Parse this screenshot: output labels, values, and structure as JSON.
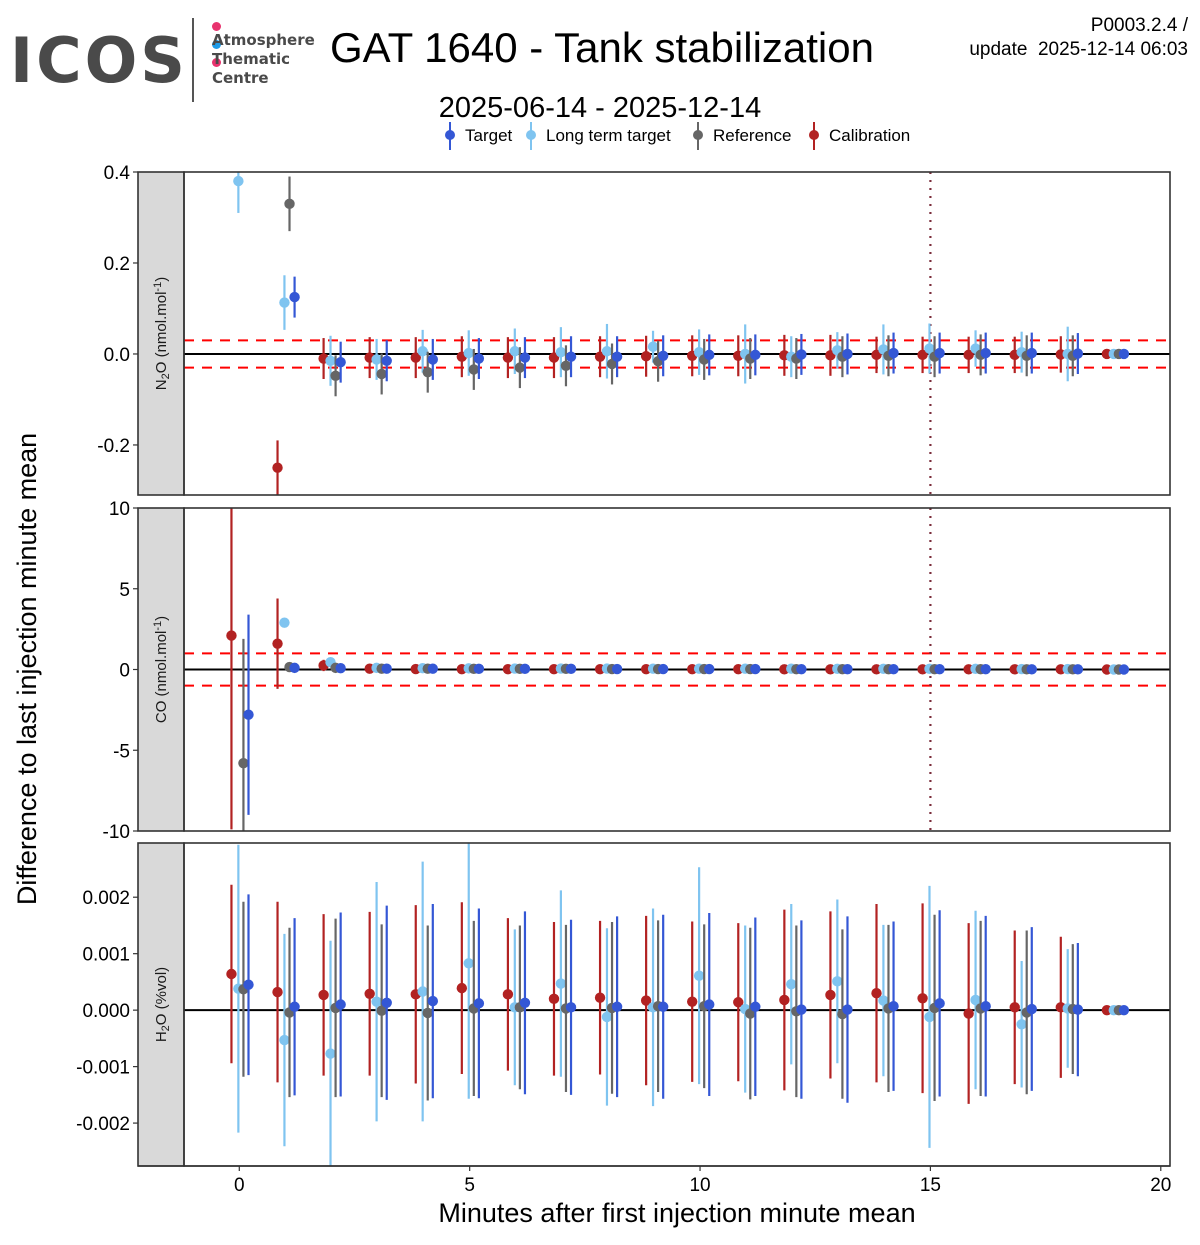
{
  "header": {
    "logo_main": "ICOS",
    "logo_lines": [
      "Atmosphere",
      "Thematic",
      "Centre"
    ],
    "logo_dot_colors": [
      "#e8336e",
      "#1e9be8",
      "#e8336e"
    ],
    "title": "GAT 1640 - Tank stabilization",
    "version_line1": "P0003.2.4 /",
    "version_line2": "update  2025-12-14 06:03"
  },
  "chart_data": {
    "type": "scatter",
    "subtitle": "2025-06-14 - 2025-12-14",
    "xlabel": "Minutes after first injection minute mean",
    "ylabel": "Difference to last injection minute mean",
    "xlim": [
      -1.2,
      20.2
    ],
    "x_ticks": [
      0,
      5,
      10,
      15,
      20
    ],
    "x_tick_labels": [
      "0",
      "5",
      "10",
      "15",
      "20"
    ],
    "grid": false,
    "legend": {
      "position": "top",
      "entries": [
        {
          "name": "Target",
          "color": "#3457d5"
        },
        {
          "name": "Long term target",
          "color": "#7fc4f0"
        },
        {
          "name": "Reference",
          "color": "#666666"
        },
        {
          "name": "Calibration",
          "color": "#b22222"
        }
      ]
    },
    "series_x_offsets": {
      "Calibration": -0.17,
      "Long term target": -0.02,
      "Reference": 0.09,
      "Target": 0.2
    },
    "vline_x": 15,
    "vline_color": "#7b2d3b",
    "panels": [
      {
        "strip_label": "N2O (nmol.mol-1)",
        "strip_main": "N",
        "strip_sub": "2",
        "strip_rest": "O (nmol.mol",
        "strip_sup": "-1",
        "strip_close": ")",
        "ylim": [
          -0.31,
          0.4
        ],
        "y_ticks": [
          -0.2,
          0.0,
          0.2,
          0.4
        ],
        "y_tick_labels": [
          "-0.2",
          "0.0",
          "0.2",
          "0.4"
        ],
        "threshold": 0.03,
        "series": {
          "Calibration": {
            "minutes": [
              1,
              2,
              3,
              4,
              5,
              6,
              7,
              8,
              9,
              10,
              11,
              12,
              13,
              14,
              15,
              16,
              17,
              18,
              19
            ],
            "values": [
              -0.25,
              -0.01,
              -0.008,
              -0.008,
              -0.006,
              -0.008,
              -0.008,
              -0.006,
              -0.005,
              -0.004,
              -0.004,
              -0.003,
              -0.003,
              -0.002,
              -0.002,
              -0.002,
              -0.002,
              -0.001,
              0.0
            ],
            "err": [
              0.06,
              0.045,
              0.045,
              0.045,
              0.045,
              0.045,
              0.045,
              0.045,
              0.045,
              0.045,
              0.045,
              0.045,
              0.045,
              0.04,
              0.04,
              0.04,
              0.04,
              0.04,
              0.0
            ]
          },
          "Long term target": {
            "minutes": [
              0,
              1,
              2,
              3,
              4,
              5,
              6,
              7,
              8,
              9,
              10,
              11,
              12,
              13,
              14,
              15,
              16,
              17,
              18,
              19
            ],
            "values": [
              0.38,
              0.113,
              -0.015,
              -0.012,
              0.006,
              0.002,
              0.006,
              0.004,
              0.006,
              0.016,
              0.004,
              0.0,
              -0.006,
              0.008,
              0.01,
              0.012,
              0.012,
              0.004,
              0.0,
              0.0
            ],
            "err": [
              0.07,
              0.06,
              0.055,
              0.045,
              0.047,
              0.05,
              0.05,
              0.055,
              0.06,
              0.035,
              0.05,
              0.065,
              0.045,
              0.04,
              0.055,
              0.055,
              0.04,
              0.045,
              0.06,
              0.0
            ]
          },
          "Reference": {
            "minutes": [
              1,
              2,
              3,
              4,
              5,
              6,
              7,
              8,
              9,
              10,
              11,
              12,
              13,
              14,
              15,
              16,
              17,
              18,
              19
            ],
            "values": [
              0.33,
              -0.048,
              -0.044,
              -0.04,
              -0.034,
              -0.03,
              -0.026,
              -0.022,
              -0.016,
              -0.012,
              -0.01,
              -0.01,
              -0.006,
              -0.004,
              -0.006,
              -0.002,
              -0.004,
              -0.004,
              0.0
            ],
            "err": [
              0.06,
              0.045,
              0.045,
              0.045,
              0.045,
              0.045,
              0.045,
              0.045,
              0.045,
              0.045,
              0.045,
              0.045,
              0.045,
              0.045,
              0.045,
              0.045,
              0.045,
              0.045,
              0.0
            ]
          },
          "Target": {
            "minutes": [
              1,
              2,
              3,
              4,
              5,
              6,
              7,
              8,
              9,
              10,
              11,
              12,
              13,
              14,
              15,
              16,
              17,
              18,
              19
            ],
            "values": [
              0.125,
              -0.018,
              -0.015,
              -0.012,
              -0.01,
              -0.008,
              -0.006,
              -0.006,
              -0.004,
              -0.002,
              -0.002,
              -0.001,
              0.0,
              0.002,
              0.002,
              0.002,
              0.002,
              0.001,
              0.0
            ],
            "err": [
              0.045,
              0.045,
              0.045,
              0.045,
              0.045,
              0.045,
              0.045,
              0.045,
              0.045,
              0.045,
              0.045,
              0.045,
              0.045,
              0.045,
              0.045,
              0.045,
              0.045,
              0.045,
              0.0
            ]
          }
        }
      },
      {
        "strip_label": "CO (nmol.mol-1)",
        "strip_main": "CO (nmol.mol",
        "strip_sub": "",
        "strip_rest": "",
        "strip_sup": "-1",
        "strip_close": ")",
        "ylim": [
          -10,
          10
        ],
        "y_ticks": [
          -10,
          -5,
          0,
          5,
          10
        ],
        "y_tick_labels": [
          "-10",
          "-5",
          "0",
          "5",
          "10"
        ],
        "threshold": 1,
        "series": {
          "Calibration": {
            "minutes": [
              0,
              1,
              2,
              3,
              4,
              5,
              6,
              7,
              8,
              9,
              10,
              11,
              12,
              13,
              14,
              15,
              16,
              17,
              18,
              19
            ],
            "values": [
              2.1,
              1.6,
              0.25,
              0.05,
              0.03,
              0.02,
              0.02,
              0.02,
              0.02,
              0.02,
              0.02,
              0.02,
              0.01,
              0.01,
              0.01,
              0.01,
              0.01,
              0.01,
              0.01,
              0.0
            ],
            "err": [
              12,
              2.8,
              0.35,
              0.05,
              0.05,
              0.05,
              0.05,
              0.05,
              0.05,
              0.05,
              0.05,
              0.05,
              0.05,
              0.05,
              0.05,
              0.05,
              0.05,
              0.05,
              0.05,
              0.0
            ]
          },
          "Long term target": {
            "minutes": [
              1,
              2,
              3,
              4,
              5,
              6,
              7,
              8,
              9,
              10,
              11,
              12,
              13,
              14,
              15,
              16,
              17,
              18,
              19
            ],
            "values": [
              2.9,
              0.45,
              0.1,
              0.08,
              0.07,
              0.06,
              0.06,
              0.06,
              0.05,
              0.05,
              0.05,
              0.05,
              0.04,
              0.04,
              0.04,
              0.04,
              0.03,
              0.03,
              0.0
            ],
            "err": [
              0.1,
              0.1,
              0.05,
              0.05,
              0.05,
              0.05,
              0.05,
              0.05,
              0.05,
              0.05,
              0.05,
              0.05,
              0.05,
              0.05,
              0.05,
              0.05,
              0.05,
              0.05,
              0.0
            ]
          },
          "Reference": {
            "minutes": [
              0,
              1,
              2,
              3,
              4,
              5,
              6,
              7,
              8,
              9,
              10,
              11,
              12,
              13,
              14,
              15,
              16,
              17,
              18,
              19
            ],
            "values": [
              -5.8,
              0.15,
              0.1,
              0.05,
              0.05,
              0.04,
              0.04,
              0.04,
              0.03,
              0.03,
              0.03,
              0.03,
              0.02,
              0.02,
              0.02,
              0.02,
              0.02,
              0.01,
              0.01,
              0.0
            ],
            "err": [
              7.7,
              0.05,
              0.05,
              0.05,
              0.05,
              0.05,
              0.05,
              0.05,
              0.05,
              0.05,
              0.05,
              0.05,
              0.05,
              0.05,
              0.05,
              0.05,
              0.05,
              0.05,
              0.05,
              0.0
            ]
          },
          "Target": {
            "minutes": [
              0,
              1,
              2,
              3,
              4,
              5,
              6,
              7,
              8,
              9,
              10,
              11,
              12,
              13,
              14,
              15,
              16,
              17,
              18,
              19
            ],
            "values": [
              -2.8,
              0.1,
              0.08,
              0.05,
              0.05,
              0.04,
              0.04,
              0.04,
              0.03,
              0.03,
              0.03,
              0.03,
              0.02,
              0.02,
              0.02,
              0.02,
              0.02,
              0.01,
              0.01,
              0.0
            ],
            "err": [
              6.2,
              0.05,
              0.05,
              0.05,
              0.05,
              0.05,
              0.05,
              0.05,
              0.05,
              0.05,
              0.05,
              0.05,
              0.05,
              0.05,
              0.05,
              0.05,
              0.05,
              0.05,
              0.05,
              0.0
            ]
          }
        }
      },
      {
        "strip_label": "H2O (%vol)",
        "strip_main": "H",
        "strip_sub": "2",
        "strip_rest": "O (%vol)",
        "strip_sup": "",
        "strip_close": "",
        "ylim": [
          -0.00276,
          0.00296
        ],
        "y_ticks": [
          -0.002,
          -0.001,
          0.0,
          0.001,
          0.002
        ],
        "y_tick_labels": [
          "-0.002",
          "-0.001",
          "0.000",
          "0.001",
          "0.002"
        ],
        "threshold": null,
        "series": {
          "Calibration": {
            "minutes": [
              0,
              1,
              2,
              3,
              4,
              5,
              6,
              7,
              8,
              9,
              10,
              11,
              12,
              13,
              14,
              15,
              16,
              17,
              18,
              19
            ],
            "values": [
              0.00064,
              0.00032,
              0.00027,
              0.00029,
              0.00028,
              0.00039,
              0.00028,
              0.0002,
              0.00022,
              0.00017,
              0.00015,
              0.00014,
              0.00018,
              0.00027,
              0.0003,
              0.00021,
              -6e-05,
              5e-05,
              5e-05,
              0.0
            ],
            "err": [
              0.00158,
              0.0016,
              0.00143,
              0.00145,
              0.00158,
              0.00152,
              0.00135,
              0.00136,
              0.00136,
              0.0015,
              0.00142,
              0.0014,
              0.0016,
              0.00148,
              0.00158,
              0.00168,
              0.0016,
              0.00136,
              0.00125,
              0.0
            ]
          },
          "Long term target": {
            "minutes": [
              0,
              1,
              2,
              3,
              4,
              5,
              6,
              7,
              8,
              9,
              10,
              11,
              12,
              13,
              14,
              15,
              16,
              17,
              18,
              19
            ],
            "values": [
              0.00038,
              -0.00053,
              -0.00077,
              0.00015,
              0.00033,
              0.00083,
              5e-05,
              0.00047,
              -0.00012,
              5e-05,
              0.00061,
              2e-05,
              0.00046,
              0.00051,
              0.00017,
              -0.00012,
              0.00018,
              -0.00025,
              3e-05,
              0.0
            ],
            "err": [
              0.00255,
              0.00188,
              0.002,
              0.00212,
              0.0023,
              0.0024,
              0.00138,
              0.00165,
              0.00157,
              0.00175,
              0.00192,
              0.00148,
              0.00142,
              0.00145,
              0.00134,
              0.00232,
              0.00158,
              0.00112,
              0.00105,
              0.0
            ]
          },
          "Reference": {
            "minutes": [
              0,
              1,
              2,
              3,
              4,
              5,
              6,
              7,
              8,
              9,
              10,
              11,
              12,
              13,
              14,
              15,
              16,
              17,
              18,
              19
            ],
            "values": [
              0.00037,
              -4e-05,
              4e-05,
              -1e-05,
              -5e-05,
              3e-05,
              5e-05,
              3e-05,
              4e-05,
              7e-05,
              7e-05,
              -6e-05,
              -2e-05,
              -7e-05,
              3e-05,
              4e-05,
              3e-05,
              -4e-05,
              2e-05,
              0.0
            ],
            "err": [
              0.00155,
              0.0015,
              0.00158,
              0.00153,
              0.00155,
              0.00155,
              0.00145,
              0.00148,
              0.00152,
              0.00152,
              0.00145,
              0.00152,
              0.00152,
              0.0015,
              0.00148,
              0.00165,
              0.00155,
              0.00145,
              0.00115,
              0.0
            ]
          },
          "Target": {
            "minutes": [
              0,
              1,
              2,
              3,
              4,
              5,
              6,
              7,
              8,
              9,
              10,
              11,
              12,
              13,
              14,
              15,
              16,
              17,
              18,
              19
            ],
            "values": [
              0.00045,
              6e-05,
              0.0001,
              0.00013,
              0.00016,
              0.00012,
              0.00013,
              5e-05,
              6e-05,
              6e-05,
              0.0001,
              6e-05,
              1e-05,
              1e-05,
              7e-05,
              0.00012,
              7e-05,
              2e-05,
              1e-05,
              0.0
            ],
            "err": [
              0.0016,
              0.00157,
              0.00163,
              0.00172,
              0.00172,
              0.00168,
              0.00162,
              0.00155,
              0.0016,
              0.00163,
              0.00162,
              0.00158,
              0.00158,
              0.00165,
              0.0015,
              0.00165,
              0.0016,
              0.00145,
              0.00118,
              0.0
            ]
          }
        }
      }
    ]
  }
}
